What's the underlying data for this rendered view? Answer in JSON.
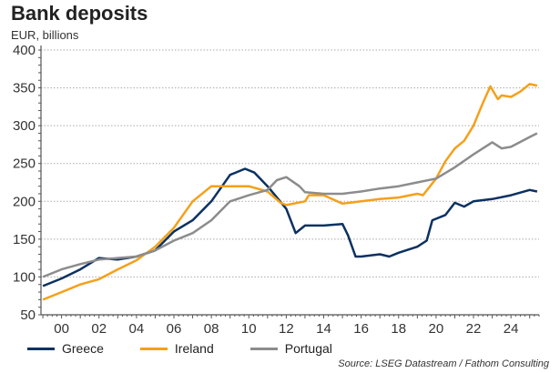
{
  "chart_data": {
    "type": "line",
    "title": "Bank deposits",
    "subtitle": "EUR, billions",
    "source": "Source: LSEG Datastream / Fathom Consulting",
    "xlim": [
      1998.9,
      2025.5
    ],
    "ylim": [
      50,
      400
    ],
    "yticks": [
      50,
      100,
      150,
      200,
      250,
      300,
      350,
      400
    ],
    "xticks": [
      2000,
      2002,
      2004,
      2006,
      2008,
      2010,
      2012,
      2014,
      2016,
      2018,
      2020,
      2022,
      2024
    ],
    "xtick_labels": [
      "00",
      "02",
      "04",
      "06",
      "08",
      "10",
      "12",
      "14",
      "16",
      "18",
      "20",
      "22",
      "24"
    ],
    "grid": "horizontal dotted",
    "legend": "bottom",
    "series": [
      {
        "name": "Greece",
        "color": "#0b3160",
        "x": [
          1999,
          2000,
          2001,
          2002,
          2003,
          2004,
          2005,
          2006,
          2007,
          2008,
          2009,
          2009.8,
          2010.3,
          2011,
          2011.5,
          2012,
          2012.5,
          2013,
          2014,
          2015,
          2015.3,
          2015.7,
          2016,
          2017,
          2017.5,
          2018,
          2019,
          2019.5,
          2019.8,
          2020.5,
          2021,
          2021.5,
          2022,
          2023,
          2024,
          2025,
          2025.4
        ],
        "y": [
          88,
          98,
          110,
          125,
          123,
          127,
          135,
          160,
          175,
          200,
          235,
          243,
          238,
          220,
          205,
          190,
          158,
          168,
          168,
          170,
          155,
          127,
          127,
          130,
          127,
          132,
          140,
          148,
          175,
          182,
          198,
          193,
          200,
          203,
          208,
          215,
          213
        ]
      },
      {
        "name": "Ireland",
        "color": "#f5a01a",
        "x": [
          1999,
          2000,
          2001,
          2002,
          2003,
          2004,
          2005,
          2006,
          2007,
          2008,
          2009,
          2010,
          2011,
          2011.7,
          2012,
          2013,
          2013.2,
          2014,
          2015,
          2016,
          2017,
          2018,
          2019,
          2019.3,
          2020,
          2020.5,
          2021,
          2021.5,
          2022,
          2022.5,
          2022.9,
          2023.3,
          2023.5,
          2024,
          2024.5,
          2025,
          2025.4
        ],
        "y": [
          70,
          80,
          90,
          97,
          110,
          122,
          140,
          165,
          200,
          220,
          220,
          220,
          213,
          198,
          195,
          200,
          208,
          208,
          197,
          200,
          203,
          205,
          210,
          208,
          230,
          253,
          270,
          280,
          300,
          330,
          352,
          335,
          340,
          338,
          345,
          355,
          353
        ]
      },
      {
        "name": "Portugal",
        "color": "#8c8c8c",
        "x": [
          1999,
          2000,
          2001,
          2002,
          2003,
          2004,
          2005,
          2006,
          2007,
          2008,
          2009,
          2010,
          2011,
          2011.5,
          2012,
          2012.7,
          2013,
          2014,
          2015,
          2016,
          2017,
          2018,
          2019,
          2020,
          2021,
          2022,
          2023,
          2023.5,
          2024,
          2025,
          2025.4
        ],
        "y": [
          100,
          110,
          117,
          123,
          125,
          127,
          135,
          148,
          158,
          175,
          200,
          208,
          215,
          228,
          232,
          220,
          212,
          210,
          210,
          213,
          217,
          220,
          225,
          230,
          245,
          262,
          278,
          270,
          272,
          285,
          290
        ]
      }
    ]
  }
}
